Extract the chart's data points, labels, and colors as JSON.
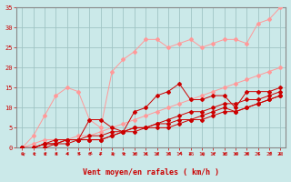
{
  "bg_color": "#cbe9e9",
  "grid_color": "#a0c4c4",
  "line_color_dark": "#cc0000",
  "line_color_light": "#ff9999",
  "xlabel": "Vent moyen/en rafales ( km/h )",
  "xlabel_color": "#cc0000",
  "tick_color": "#cc0000",
  "spine_color": "#888888",
  "xlim": [
    -0.5,
    23.5
  ],
  "ylim": [
    0,
    35
  ],
  "xticks": [
    0,
    1,
    2,
    3,
    4,
    5,
    6,
    7,
    8,
    9,
    10,
    11,
    12,
    13,
    14,
    15,
    16,
    17,
    18,
    19,
    20,
    21,
    22,
    23
  ],
  "yticks": [
    0,
    5,
    10,
    15,
    20,
    25,
    30,
    35
  ],
  "series_light": [
    [
      0,
      3,
      8,
      13,
      15,
      14,
      7,
      5,
      19,
      22,
      24,
      27,
      27,
      25,
      26,
      27,
      25,
      26,
      27,
      27,
      26,
      31,
      32,
      35
    ],
    [
      0,
      1,
      2,
      2,
      2,
      3,
      3,
      4,
      5,
      6,
      7,
      8,
      9,
      10,
      11,
      12,
      13,
      14,
      15,
      16,
      17,
      18,
      19,
      20
    ]
  ],
  "series_dark": [
    [
      0,
      0,
      1,
      2,
      2,
      2,
      7,
      7,
      5,
      4,
      9,
      10,
      13,
      14,
      16,
      12,
      12,
      13,
      13,
      10,
      14,
      14,
      14,
      15
    ],
    [
      0,
      0,
      1,
      1,
      2,
      2,
      3,
      3,
      4,
      4,
      5,
      5,
      6,
      7,
      8,
      9,
      9,
      10,
      11,
      11,
      12,
      12,
      13,
      14
    ],
    [
      0,
      0,
      1,
      1,
      2,
      2,
      2,
      2,
      3,
      4,
      5,
      5,
      6,
      6,
      7,
      7,
      8,
      9,
      10,
      9,
      10,
      11,
      12,
      13
    ],
    [
      0,
      0,
      0,
      1,
      1,
      2,
      2,
      2,
      3,
      4,
      4,
      5,
      5,
      5,
      6,
      7,
      7,
      8,
      9,
      9,
      10,
      11,
      12,
      13
    ]
  ]
}
